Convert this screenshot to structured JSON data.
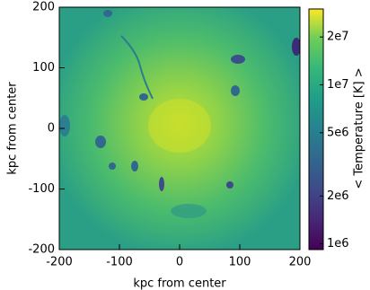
{
  "chart_data": {
    "type": "heatmap",
    "xlabel": "kpc from center",
    "ylabel": "kpc from center",
    "xlim": [
      -200,
      200
    ],
    "ylim": [
      -200,
      200
    ],
    "xticks": [
      -200,
      -100,
      0,
      100,
      200
    ],
    "yticks": [
      -200,
      -100,
      0,
      100,
      200
    ],
    "colorbar": {
      "label": "< Temperature [K] >",
      "scale": "log",
      "colormap": "viridis",
      "lim": [
        920000,
        30000000
      ],
      "ticks": [
        {
          "value": 1000000,
          "label": "1e6"
        },
        {
          "value": 2000000,
          "label": "2e6"
        },
        {
          "value": 5000000,
          "label": "5e6"
        },
        {
          "value": 10000000,
          "label": "1e7"
        },
        {
          "value": 20000000,
          "label": "2e7"
        }
      ]
    }
  }
}
